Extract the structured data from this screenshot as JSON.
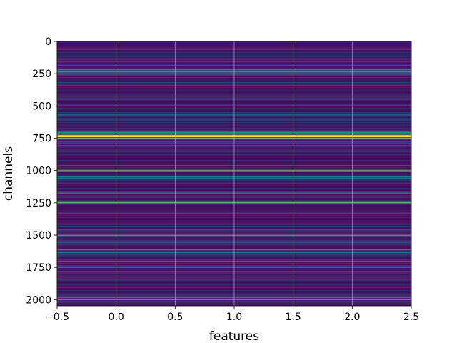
{
  "chart_data": {
    "type": "heatmap",
    "title": "",
    "xlabel": "features",
    "ylabel": "channels",
    "xlim": [
      -0.5,
      2.5
    ],
    "ylim": [
      2048,
      0
    ],
    "y_inverted": true,
    "n_rows": 2048,
    "n_cols": 3,
    "colormap": "viridis",
    "grid": true,
    "x_ticks": [
      -0.5,
      0.0,
      0.5,
      1.0,
      1.5,
      2.0,
      2.5
    ],
    "x_tick_labels": [
      "−0.5",
      "0.0",
      "0.5",
      "1.0",
      "1.5",
      "2.0",
      "2.5"
    ],
    "y_ticks": [
      0,
      250,
      500,
      750,
      1000,
      1250,
      1500,
      1750,
      2000
    ],
    "y_tick_labels": [
      "0",
      "250",
      "500",
      "750",
      "1000",
      "1250",
      "1500",
      "1750",
      "2000"
    ],
    "background_level": 0.1,
    "highlighted_rows": [
      {
        "channel": 185,
        "level": 0.55
      },
      {
        "channel": 215,
        "level": 0.45
      },
      {
        "channel": 232,
        "level": 0.5
      },
      {
        "channel": 340,
        "level": 0.35
      },
      {
        "channel": 420,
        "level": 0.35
      },
      {
        "channel": 560,
        "level": 0.3
      },
      {
        "channel": 700,
        "level": 0.5
      },
      {
        "channel": 712,
        "level": 0.7
      },
      {
        "channel": 724,
        "level": 0.85
      },
      {
        "channel": 735,
        "level": 1.0
      },
      {
        "channel": 748,
        "level": 0.55
      },
      {
        "channel": 770,
        "level": 0.45
      },
      {
        "channel": 790,
        "level": 0.5
      },
      {
        "channel": 805,
        "level": 0.35
      },
      {
        "channel": 960,
        "level": 0.45
      },
      {
        "channel": 1000,
        "level": 0.35
      },
      {
        "channel": 1040,
        "level": 0.4
      },
      {
        "channel": 1055,
        "level": 0.35
      },
      {
        "channel": 1170,
        "level": 0.4
      },
      {
        "channel": 1245,
        "level": 0.5
      },
      {
        "channel": 1330,
        "level": 0.35
      },
      {
        "channel": 1500,
        "level": 0.35
      },
      {
        "channel": 1610,
        "level": 0.45
      },
      {
        "channel": 1630,
        "level": 0.4
      },
      {
        "channel": 1700,
        "level": 0.35
      },
      {
        "channel": 1820,
        "level": 0.35
      },
      {
        "channel": 1980,
        "level": 0.4
      }
    ]
  }
}
